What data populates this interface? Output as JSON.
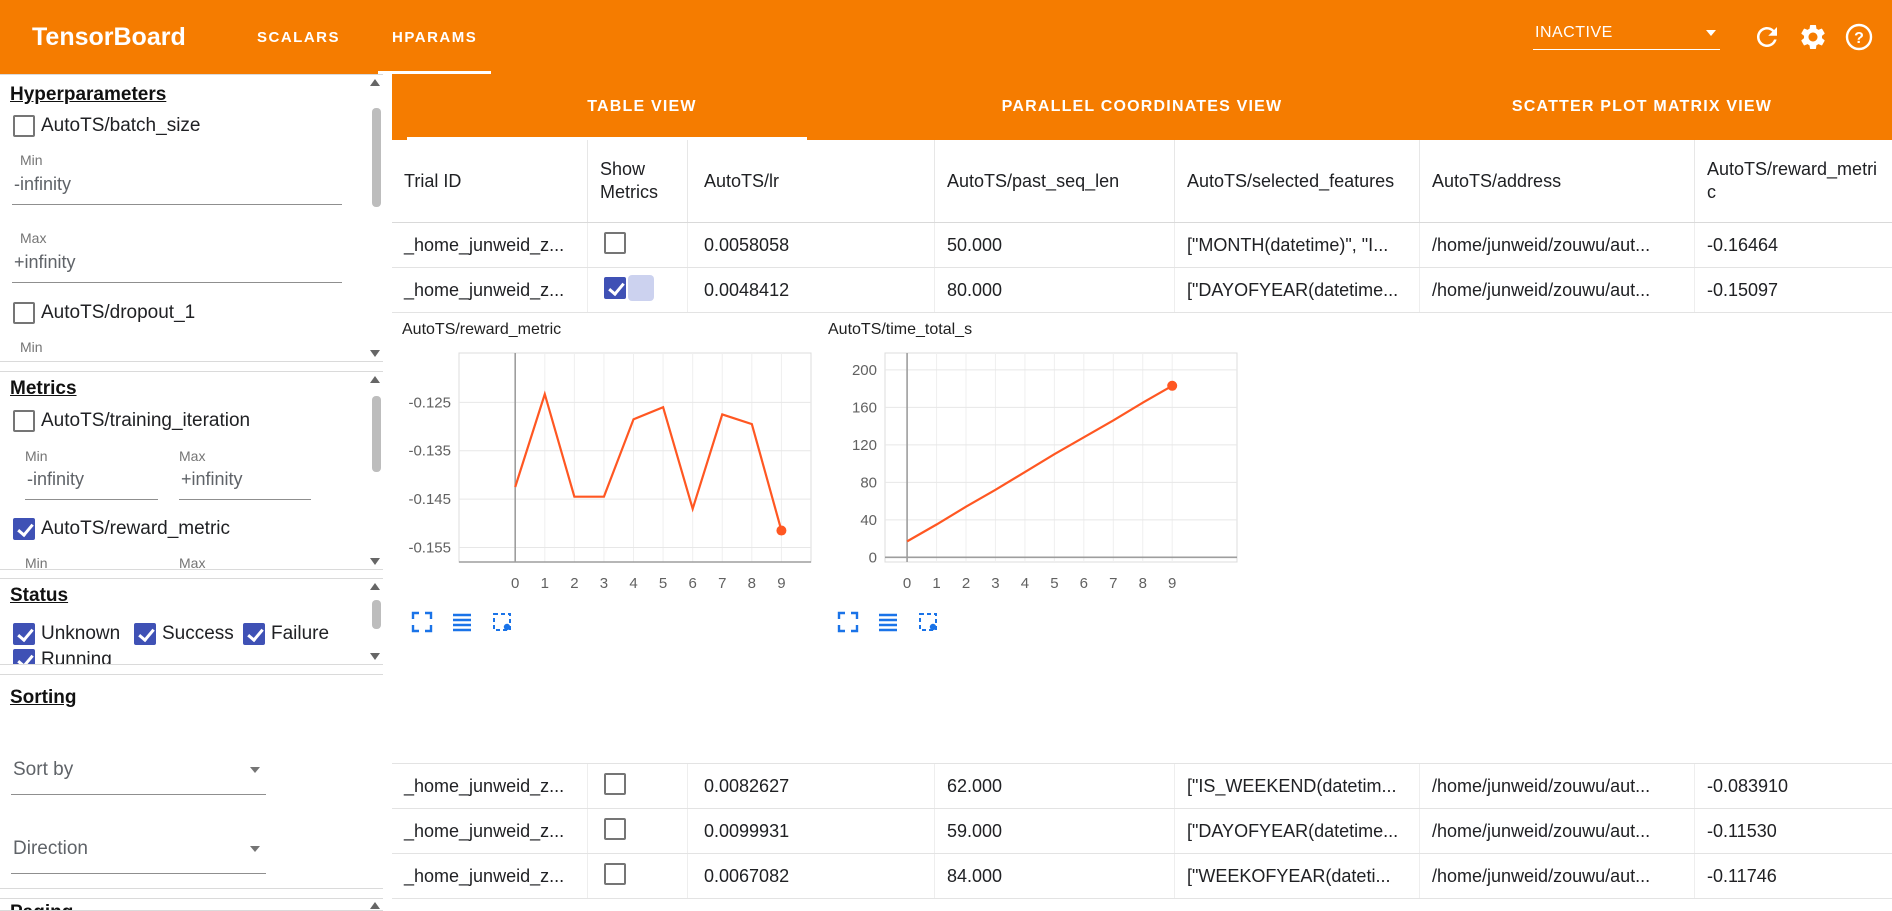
{
  "header": {
    "title": "TensorBoard",
    "tabs": [
      {
        "label": "SCALARS",
        "active": false
      },
      {
        "label": "HPARAMS",
        "active": true
      }
    ],
    "status_dropdown": "INACTIVE"
  },
  "sidebar": {
    "hyperparameters": {
      "title": "Hyperparameters",
      "items": [
        {
          "label": "AutoTS/batch_size",
          "checked": false,
          "min_label": "Min",
          "min_value": "-infinity",
          "max_label": "Max",
          "max_value": "+infinity"
        },
        {
          "label": "AutoTS/dropout_1",
          "checked": false,
          "min_label": "Min"
        }
      ]
    },
    "metrics": {
      "title": "Metrics",
      "items": [
        {
          "label": "AutoTS/training_iteration",
          "checked": false,
          "min_label": "Min",
          "min_value": "-infinity",
          "max_label": "Max",
          "max_value": "+infinity"
        },
        {
          "label": "AutoTS/reward_metric",
          "checked": true,
          "min_label": "Min",
          "max_label": "Max"
        }
      ]
    },
    "status": {
      "title": "Status",
      "items": [
        {
          "label": "Unknown",
          "checked": true
        },
        {
          "label": "Success",
          "checked": true
        },
        {
          "label": "Failure",
          "checked": true
        },
        {
          "label": "Running",
          "checked": true
        }
      ]
    },
    "sorting": {
      "title": "Sorting",
      "sort_by_placeholder": "Sort by",
      "direction_placeholder": "Direction"
    },
    "paging": {
      "title": "Paging"
    }
  },
  "views": {
    "tabs": [
      {
        "label": "TABLE VIEW",
        "active": true
      },
      {
        "label": "PARALLEL COORDINATES VIEW",
        "active": false
      },
      {
        "label": "SCATTER PLOT MATRIX VIEW",
        "active": false
      }
    ]
  },
  "table": {
    "columns": [
      "Trial ID",
      "Show Metrics",
      "AutoTS/lr",
      "AutoTS/past_seq_len",
      "AutoTS/selected_features",
      "AutoTS/address",
      "AutoTS/reward_metric"
    ],
    "rows": [
      {
        "trial_id": "_home_junweid_z...",
        "show_metrics": false,
        "lr": "0.0058058",
        "past_seq_len": "50.000",
        "selected_features": "[\"MONTH(datetime)\", \"I...",
        "address": "/home/junweid/zouwu/aut...",
        "reward_metric": "-0.16464"
      },
      {
        "trial_id": "_home_junweid_z...",
        "show_metrics": true,
        "lr": "0.0048412",
        "past_seq_len": "80.000",
        "selected_features": "[\"DAYOFYEAR(datetime...",
        "address": "/home/junweid/zouwu/aut...",
        "reward_metric": "-0.15097"
      },
      {
        "trial_id": "_home_junweid_z...",
        "show_metrics": false,
        "lr": "0.0082627",
        "past_seq_len": "62.000",
        "selected_features": "[\"IS_WEEKEND(datetim...",
        "address": "/home/junweid/zouwu/aut...",
        "reward_metric": "-0.083910"
      },
      {
        "trial_id": "_home_junweid_z...",
        "show_metrics": false,
        "lr": "0.0099931",
        "past_seq_len": "59.000",
        "selected_features": "[\"DAYOFYEAR(datetime...",
        "address": "/home/junweid/zouwu/aut...",
        "reward_metric": "-0.11530"
      },
      {
        "trial_id": "_home_junweid_z...",
        "show_metrics": false,
        "lr": "0.0067082",
        "past_seq_len": "84.000",
        "selected_features": "[\"WEEKOFYEAR(dateti...",
        "address": "/home/junweid/zouwu/aut...",
        "reward_metric": "-0.11746"
      }
    ]
  },
  "chart_data": [
    {
      "type": "line",
      "title": "AutoTS/reward_metric",
      "x": [
        0,
        1,
        2,
        3,
        4,
        5,
        6,
        7,
        8,
        9
      ],
      "values": [
        -0.1425,
        -0.1233,
        -0.1445,
        -0.1445,
        -0.1285,
        -0.126,
        -0.147,
        -0.1275,
        -0.1295,
        -0.1515
      ],
      "xticks": [
        0,
        1,
        2,
        3,
        4,
        5,
        6,
        7,
        8,
        9
      ],
      "yticks": [
        -0.125,
        -0.135,
        -0.145,
        -0.155
      ],
      "ytick_labels": [
        "-0.125",
        "-0.135",
        "-0.145",
        "-0.155"
      ],
      "xlim": [
        -1.9,
        10.0
      ],
      "ylim": [
        -0.158,
        -0.1148
      ],
      "axis_y": -0.158,
      "color": "#ff5722",
      "grid": true,
      "end_dot": true
    },
    {
      "type": "line",
      "title": "AutoTS/time_total_s",
      "x": [
        0,
        1,
        2,
        3,
        4,
        5,
        6,
        7,
        8,
        9
      ],
      "values": [
        17,
        35,
        54,
        72,
        91,
        110,
        128,
        146,
        165,
        183
      ],
      "xticks": [
        0,
        1,
        2,
        3,
        4,
        5,
        6,
        7,
        8,
        9
      ],
      "yticks": [
        0,
        40,
        80,
        120,
        160,
        200
      ],
      "ytick_labels": [
        "0",
        "40",
        "80",
        "120",
        "160",
        "200"
      ],
      "xlim": [
        -0.75,
        11.2
      ],
      "ylim": [
        -5,
        218
      ],
      "axis_y": 0,
      "color": "#ff5722",
      "grid": true,
      "end_dot": true
    }
  ],
  "colors": {
    "header_orange": "#f57c00",
    "chart_line": "#ff5722",
    "checkbox_blue": "#3f51b5",
    "chart_icon_blue": "#1a73e8"
  }
}
